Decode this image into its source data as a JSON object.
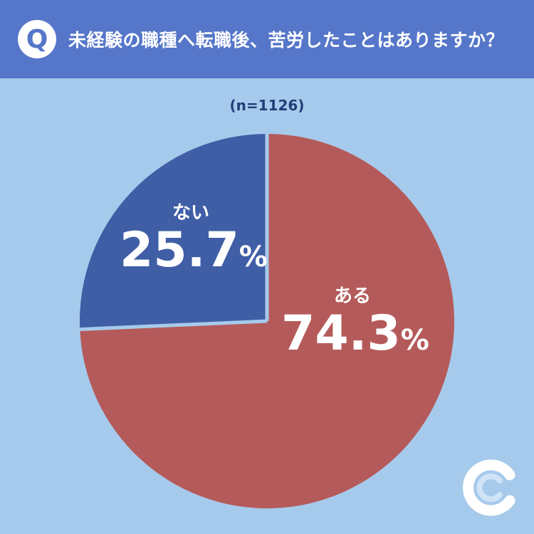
{
  "header": {
    "badge": "Q",
    "question": "未経験の職種へ転職後、苦労したことはありますか？",
    "bg_color": "#5576c9"
  },
  "sample_size": "(n=1126)",
  "chart_data": {
    "type": "pie",
    "categories": [
      "ある",
      "ない"
    ],
    "values": [
      74.3,
      25.7
    ],
    "colors": [
      "#b55a5a",
      "#3f5ea6"
    ],
    "start_angle_deg": 0,
    "direction": "clockwise",
    "data_labels": [
      {
        "name": "ある",
        "value": "74.3",
        "unit": "%"
      },
      {
        "name": "ない",
        "value": "25.7",
        "unit": "%"
      }
    ]
  },
  "colors": {
    "background": "#a6caeb",
    "divider": "#a6caeb"
  },
  "logo_icon": "c-logo-icon"
}
